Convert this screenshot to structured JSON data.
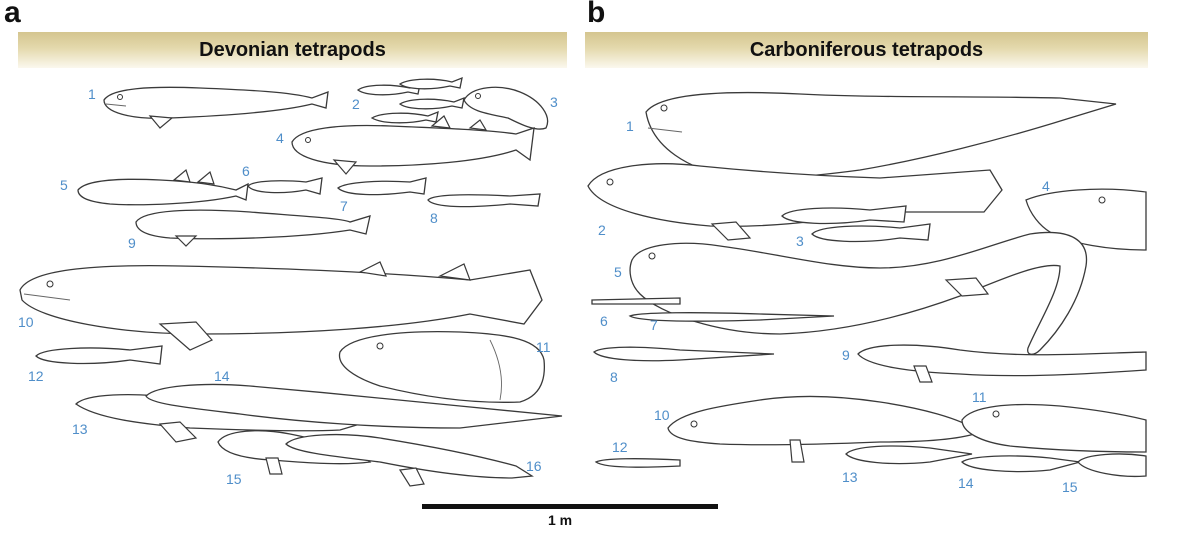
{
  "panels": {
    "a": {
      "letter": "a",
      "title": "Devonian tetrapods",
      "labels": [
        "1",
        "2",
        "3",
        "4",
        "5",
        "6",
        "7",
        "8",
        "9",
        "10",
        "11",
        "12",
        "13",
        "14",
        "15",
        "16"
      ]
    },
    "b": {
      "letter": "b",
      "title": "Carboniferous tetrapods",
      "labels": [
        "1",
        "2",
        "3",
        "4",
        "5",
        "6",
        "7",
        "8",
        "9",
        "10",
        "11",
        "12",
        "13",
        "14",
        "15"
      ]
    }
  },
  "scale": {
    "label": "1 m"
  },
  "colors": {
    "label_blue": "#4f8ec9",
    "banner_gold": "#d4c58f"
  }
}
